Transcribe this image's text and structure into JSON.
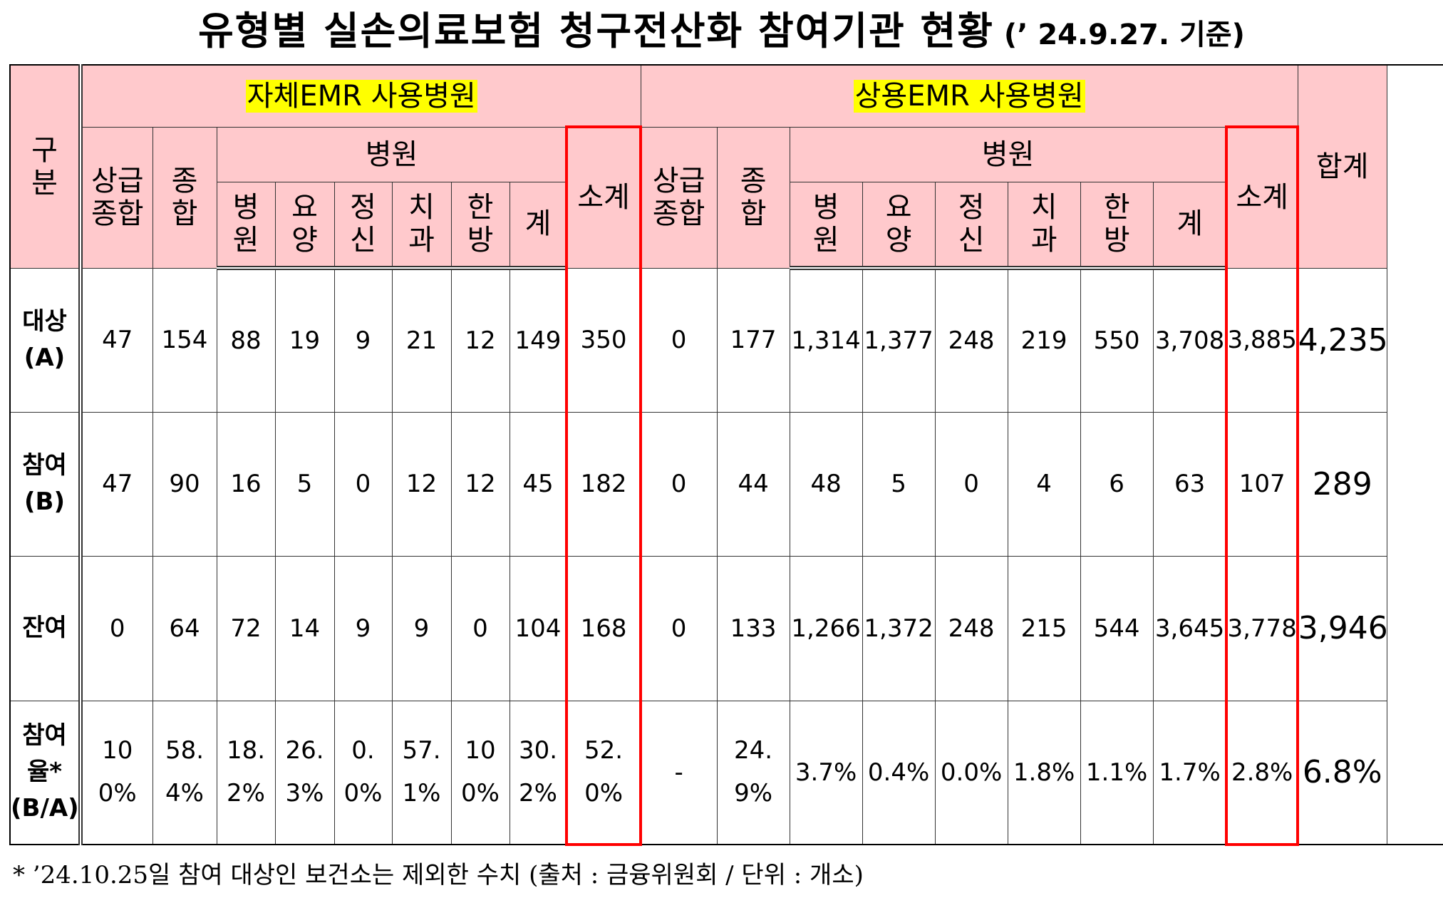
{
  "title": "유형별 실손의료보험 청구전산화 참여기관 현황",
  "title_note": "(’ 24.9.27. 기준)",
  "table": {
    "header": {
      "category": [
        "구",
        "분"
      ],
      "groups": [
        {
          "name": "자체EMR 사용병원",
          "tertiary": [
            "상급",
            "종합"
          ],
          "general": [
            "종",
            "합"
          ],
          "hospital": "병원",
          "types": [
            [
              "병",
              "원"
            ],
            [
              "요",
              "양"
            ],
            [
              "정",
              "신"
            ],
            [
              "치",
              "과"
            ],
            [
              "한",
              "방"
            ],
            [
              "계"
            ]
          ],
          "subtotal": [
            "소계"
          ]
        },
        {
          "name": "상용EMR 사용병원",
          "tertiary": [
            "상급",
            "종합"
          ],
          "general": [
            "종",
            "합"
          ],
          "hospital": "병원",
          "types": [
            [
              "병",
              "원"
            ],
            [
              "요",
              "양"
            ],
            [
              "정",
              "신"
            ],
            [
              "치",
              "과"
            ],
            [
              "한",
              "방"
            ],
            [
              "계"
            ]
          ],
          "subtotal": [
            "소계"
          ]
        }
      ],
      "total": "합계"
    },
    "rows": [
      {
        "label": [
          "대상",
          "(A)"
        ],
        "cells": [
          "47",
          "154",
          "88",
          "19",
          "9",
          "21",
          "12",
          "149",
          "350",
          "0",
          "177",
          "1,314",
          "1,377",
          "248",
          "219",
          "550",
          "3,708",
          "3,885",
          "4,235"
        ]
      },
      {
        "label": [
          "참여",
          "(B)"
        ],
        "cells": [
          "47",
          "90",
          "16",
          "5",
          "0",
          "12",
          "12",
          "45",
          "182",
          "0",
          "44",
          "48",
          "5",
          "0",
          "4",
          "6",
          "63",
          "107",
          "289"
        ]
      },
      {
        "label": [
          "잔여"
        ],
        "cells": [
          "0",
          "64",
          "72",
          "14",
          "9",
          "9",
          "0",
          "104",
          "168",
          "0",
          "133",
          "1,266",
          "1,372",
          "248",
          "215",
          "544",
          "3,645",
          "3,778",
          "3,946"
        ]
      },
      {
        "label": [
          "참여",
          "율*",
          "(B/A)"
        ],
        "cells": [
          "100%",
          "58.4%",
          "18.2%",
          "26.3%",
          "0.0%",
          "57.1%",
          "100%",
          "30.2%",
          "52.0%",
          "-",
          "24.9%",
          "3.7%",
          "0.4%",
          "0.0%",
          "1.8%",
          "1.1%",
          "1.7%",
          "2.8%",
          "6.8%"
        ]
      }
    ]
  },
  "footnote": "* ’24.10.25일 참여 대상인 보건소는 제외한 수치 (출처 : 금융위원회 / 단위 : 개소)"
}
